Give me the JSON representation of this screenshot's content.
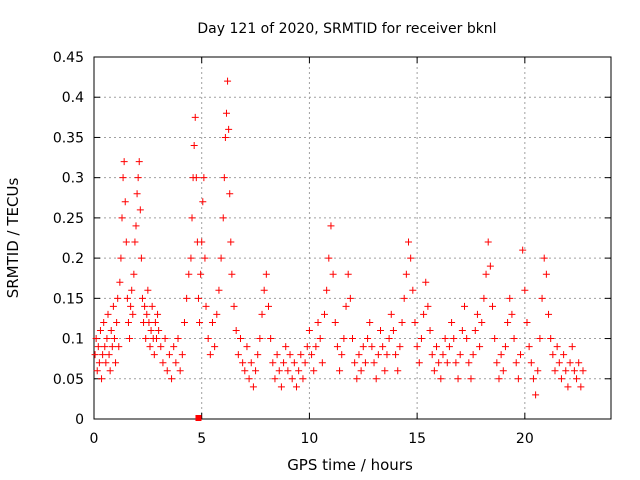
{
  "chart_data": {
    "type": "scatter",
    "title": "Day 121 of 2020, SRMTID for receiver bknl",
    "xlabel": "GPS time / hours",
    "ylabel": "SRMTID / TECUs",
    "xlim": [
      0,
      24
    ],
    "ylim": [
      0,
      0.45
    ],
    "x_ticks": [
      0,
      5,
      10,
      15,
      20
    ],
    "y_ticks": [
      0,
      0.05,
      0.1,
      0.15,
      0.2,
      0.25,
      0.3,
      0.35,
      0.4,
      0.45
    ],
    "x_tick_labels": [
      "0",
      "5",
      "10",
      "15",
      "20"
    ],
    "y_tick_labels": [
      "0",
      "0.05",
      "0.1",
      "0.15",
      "0.2",
      "0.25",
      "0.3",
      "0.35",
      "0.4",
      "0.45"
    ],
    "grid": true,
    "marker": "+",
    "color": "#ff0000",
    "series": [
      {
        "values_note_omitted": false,
        "points": [
          [
            0.05,
            0.08
          ],
          [
            0.1,
            0.1
          ],
          [
            0.15,
            0.06
          ],
          [
            0.2,
            0.09
          ],
          [
            0.25,
            0.07
          ],
          [
            0.3,
            0.11
          ],
          [
            0.35,
            0.05
          ],
          [
            0.4,
            0.08
          ],
          [
            0.45,
            0.12
          ],
          [
            0.5,
            0.09
          ],
          [
            0.55,
            0.07
          ],
          [
            0.6,
            0.1
          ],
          [
            0.65,
            0.13
          ],
          [
            0.7,
            0.08
          ],
          [
            0.75,
            0.06
          ],
          [
            0.8,
            0.11
          ],
          [
            0.85,
            0.09
          ],
          [
            0.9,
            0.14
          ],
          [
            0.95,
            0.1
          ],
          [
            1.0,
            0.07
          ],
          [
            1.05,
            0.12
          ],
          [
            1.1,
            0.15
          ],
          [
            1.15,
            0.09
          ],
          [
            1.2,
            0.17
          ],
          [
            1.25,
            0.2
          ],
          [
            1.3,
            0.25
          ],
          [
            1.35,
            0.3
          ],
          [
            1.4,
            0.32
          ],
          [
            1.45,
            0.27
          ],
          [
            1.5,
            0.22
          ],
          [
            1.55,
            0.15
          ],
          [
            1.6,
            0.12
          ],
          [
            1.65,
            0.1
          ],
          [
            1.7,
            0.14
          ],
          [
            1.75,
            0.16
          ],
          [
            1.8,
            0.13
          ],
          [
            1.85,
            0.18
          ],
          [
            1.9,
            0.22
          ],
          [
            1.95,
            0.24
          ],
          [
            2.0,
            0.28
          ],
          [
            2.05,
            0.3
          ],
          [
            2.1,
            0.32
          ],
          [
            2.15,
            0.26
          ],
          [
            2.2,
            0.2
          ],
          [
            2.25,
            0.15
          ],
          [
            2.3,
            0.12
          ],
          [
            2.35,
            0.14
          ],
          [
            2.4,
            0.1
          ],
          [
            2.45,
            0.13
          ],
          [
            2.5,
            0.16
          ],
          [
            2.55,
            0.12
          ],
          [
            2.6,
            0.09
          ],
          [
            2.65,
            0.11
          ],
          [
            2.7,
            0.14
          ],
          [
            2.75,
            0.1
          ],
          [
            2.8,
            0.08
          ],
          [
            2.85,
            0.12
          ],
          [
            2.9,
            0.1
          ],
          [
            2.95,
            0.13
          ],
          [
            3.0,
            0.11
          ],
          [
            3.1,
            0.09
          ],
          [
            3.2,
            0.07
          ],
          [
            3.3,
            0.1
          ],
          [
            3.4,
            0.06
          ],
          [
            3.5,
            0.08
          ],
          [
            3.6,
            0.05
          ],
          [
            3.7,
            0.09
          ],
          [
            3.8,
            0.07
          ],
          [
            3.9,
            0.1
          ],
          [
            4.0,
            0.06
          ],
          [
            4.1,
            0.08
          ],
          [
            4.2,
            0.12
          ],
          [
            4.3,
            0.15
          ],
          [
            4.4,
            0.18
          ],
          [
            4.5,
            0.2
          ],
          [
            4.55,
            0.25
          ],
          [
            4.6,
            0.3
          ],
          [
            4.65,
            0.34
          ],
          [
            4.7,
            0.375
          ],
          [
            4.75,
            0.3
          ],
          [
            4.8,
            0.22
          ],
          [
            4.85,
            0.15
          ],
          [
            4.9,
            0.12
          ],
          [
            4.95,
            0.18
          ],
          [
            5.0,
            0.22
          ],
          [
            5.05,
            0.27
          ],
          [
            5.1,
            0.3
          ],
          [
            5.15,
            0.2
          ],
          [
            5.2,
            0.14
          ],
          [
            5.3,
            0.1
          ],
          [
            5.4,
            0.08
          ],
          [
            5.5,
            0.12
          ],
          [
            5.6,
            0.09
          ],
          [
            5.7,
            0.13
          ],
          [
            5.8,
            0.16
          ],
          [
            5.9,
            0.2
          ],
          [
            6.0,
            0.25
          ],
          [
            6.05,
            0.3
          ],
          [
            6.1,
            0.35
          ],
          [
            6.15,
            0.38
          ],
          [
            6.2,
            0.42
          ],
          [
            6.25,
            0.36
          ],
          [
            6.3,
            0.28
          ],
          [
            6.35,
            0.22
          ],
          [
            6.4,
            0.18
          ],
          [
            6.5,
            0.14
          ],
          [
            6.6,
            0.11
          ],
          [
            6.7,
            0.08
          ],
          [
            6.8,
            0.1
          ],
          [
            6.9,
            0.07
          ],
          [
            7.0,
            0.06
          ],
          [
            7.1,
            0.09
          ],
          [
            7.2,
            0.05
          ],
          [
            7.3,
            0.07
          ],
          [
            7.4,
            0.04
          ],
          [
            7.5,
            0.06
          ],
          [
            7.6,
            0.08
          ],
          [
            7.7,
            0.1
          ],
          [
            7.8,
            0.13
          ],
          [
            7.9,
            0.16
          ],
          [
            8.0,
            0.18
          ],
          [
            8.1,
            0.14
          ],
          [
            8.2,
            0.1
          ],
          [
            8.3,
            0.07
          ],
          [
            8.4,
            0.05
          ],
          [
            8.5,
            0.08
          ],
          [
            8.6,
            0.06
          ],
          [
            8.7,
            0.04
          ],
          [
            8.8,
            0.07
          ],
          [
            8.9,
            0.09
          ],
          [
            9.0,
            0.06
          ],
          [
            9.1,
            0.08
          ],
          [
            9.2,
            0.05
          ],
          [
            9.3,
            0.07
          ],
          [
            9.4,
            0.04
          ],
          [
            9.5,
            0.06
          ],
          [
            9.6,
            0.08
          ],
          [
            9.7,
            0.05
          ],
          [
            9.8,
            0.07
          ],
          [
            9.9,
            0.09
          ],
          [
            10.0,
            0.11
          ],
          [
            10.1,
            0.08
          ],
          [
            10.2,
            0.06
          ],
          [
            10.3,
            0.09
          ],
          [
            10.4,
            0.12
          ],
          [
            10.5,
            0.1
          ],
          [
            10.6,
            0.07
          ],
          [
            10.7,
            0.13
          ],
          [
            10.8,
            0.16
          ],
          [
            10.9,
            0.2
          ],
          [
            11.0,
            0.24
          ],
          [
            11.1,
            0.18
          ],
          [
            11.2,
            0.12
          ],
          [
            11.3,
            0.09
          ],
          [
            11.4,
            0.06
          ],
          [
            11.5,
            0.08
          ],
          [
            11.6,
            0.1
          ],
          [
            11.7,
            0.14
          ],
          [
            11.8,
            0.18
          ],
          [
            11.9,
            0.15
          ],
          [
            12.0,
            0.1
          ],
          [
            12.1,
            0.07
          ],
          [
            12.2,
            0.05
          ],
          [
            12.3,
            0.08
          ],
          [
            12.4,
            0.06
          ],
          [
            12.5,
            0.09
          ],
          [
            12.6,
            0.07
          ],
          [
            12.7,
            0.1
          ],
          [
            12.8,
            0.12
          ],
          [
            12.9,
            0.09
          ],
          [
            13.0,
            0.07
          ],
          [
            13.1,
            0.05
          ],
          [
            13.2,
            0.08
          ],
          [
            13.3,
            0.11
          ],
          [
            13.4,
            0.09
          ],
          [
            13.5,
            0.06
          ],
          [
            13.6,
            0.08
          ],
          [
            13.7,
            0.1
          ],
          [
            13.8,
            0.13
          ],
          [
            13.9,
            0.11
          ],
          [
            14.0,
            0.08
          ],
          [
            14.1,
            0.06
          ],
          [
            14.2,
            0.09
          ],
          [
            14.3,
            0.12
          ],
          [
            14.4,
            0.15
          ],
          [
            14.5,
            0.18
          ],
          [
            14.6,
            0.22
          ],
          [
            14.7,
            0.2
          ],
          [
            14.8,
            0.16
          ],
          [
            14.9,
            0.12
          ],
          [
            15.0,
            0.09
          ],
          [
            15.1,
            0.07
          ],
          [
            15.2,
            0.1
          ],
          [
            15.3,
            0.13
          ],
          [
            15.4,
            0.17
          ],
          [
            15.5,
            0.14
          ],
          [
            15.6,
            0.11
          ],
          [
            15.7,
            0.08
          ],
          [
            15.8,
            0.06
          ],
          [
            15.9,
            0.09
          ],
          [
            16.0,
            0.07
          ],
          [
            16.1,
            0.05
          ],
          [
            16.2,
            0.08
          ],
          [
            16.3,
            0.1
          ],
          [
            16.4,
            0.07
          ],
          [
            16.5,
            0.09
          ],
          [
            16.6,
            0.12
          ],
          [
            16.7,
            0.1
          ],
          [
            16.8,
            0.07
          ],
          [
            16.9,
            0.05
          ],
          [
            17.0,
            0.08
          ],
          [
            17.1,
            0.11
          ],
          [
            17.2,
            0.14
          ],
          [
            17.3,
            0.1
          ],
          [
            17.4,
            0.07
          ],
          [
            17.5,
            0.05
          ],
          [
            17.6,
            0.08
          ],
          [
            17.7,
            0.11
          ],
          [
            17.8,
            0.13
          ],
          [
            17.9,
            0.09
          ],
          [
            18.0,
            0.12
          ],
          [
            18.1,
            0.15
          ],
          [
            18.2,
            0.18
          ],
          [
            18.3,
            0.22
          ],
          [
            18.4,
            0.19
          ],
          [
            18.5,
            0.14
          ],
          [
            18.6,
            0.1
          ],
          [
            18.7,
            0.07
          ],
          [
            18.8,
            0.05
          ],
          [
            18.9,
            0.08
          ],
          [
            19.0,
            0.06
          ],
          [
            19.1,
            0.09
          ],
          [
            19.2,
            0.12
          ],
          [
            19.3,
            0.15
          ],
          [
            19.4,
            0.13
          ],
          [
            19.5,
            0.1
          ],
          [
            19.6,
            0.07
          ],
          [
            19.7,
            0.05
          ],
          [
            19.8,
            0.08
          ],
          [
            19.9,
            0.21
          ],
          [
            20.0,
            0.16
          ],
          [
            20.1,
            0.12
          ],
          [
            20.2,
            0.09
          ],
          [
            20.3,
            0.07
          ],
          [
            20.4,
            0.05
          ],
          [
            20.5,
            0.03
          ],
          [
            20.6,
            0.06
          ],
          [
            20.7,
            0.1
          ],
          [
            20.8,
            0.15
          ],
          [
            20.9,
            0.2
          ],
          [
            21.0,
            0.18
          ],
          [
            21.1,
            0.13
          ],
          [
            21.2,
            0.1
          ],
          [
            21.3,
            0.08
          ],
          [
            21.4,
            0.06
          ],
          [
            21.5,
            0.09
          ],
          [
            21.6,
            0.07
          ],
          [
            21.7,
            0.05
          ],
          [
            21.8,
            0.08
          ],
          [
            21.9,
            0.06
          ],
          [
            22.0,
            0.04
          ],
          [
            22.1,
            0.07
          ],
          [
            22.2,
            0.09
          ],
          [
            22.3,
            0.06
          ],
          [
            22.4,
            0.05
          ],
          [
            22.5,
            0.07
          ],
          [
            22.6,
            0.04
          ],
          [
            22.7,
            0.06
          ]
        ]
      }
    ],
    "extra_markers": [
      [
        4.85,
        0.0
      ]
    ]
  }
}
